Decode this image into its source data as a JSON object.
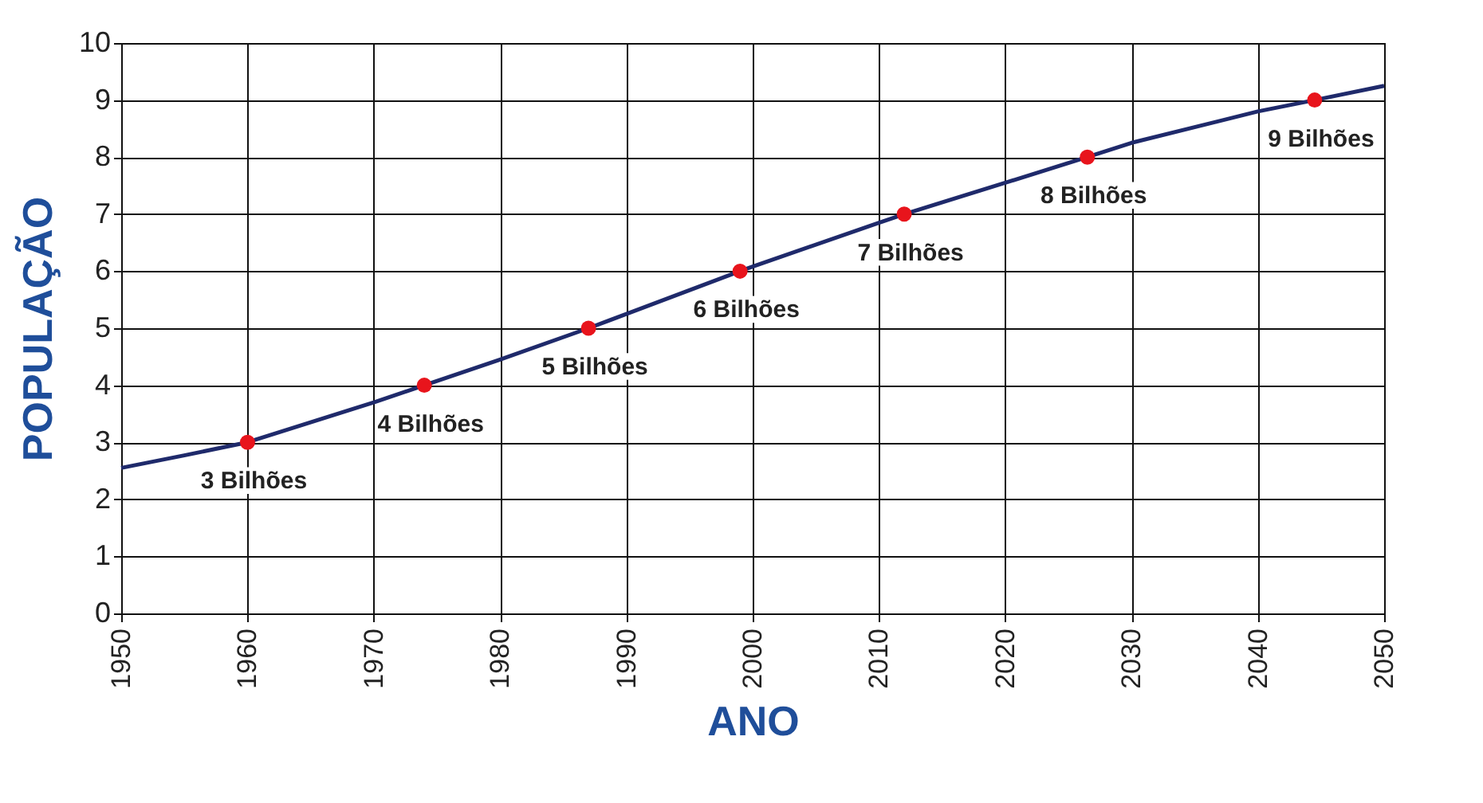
{
  "chart_data": {
    "type": "line",
    "xlabel": "ANO",
    "ylabel": "POPULAÇÃO",
    "xlim": [
      1950,
      2050
    ],
    "xticks": [
      1950,
      1960,
      1970,
      1980,
      1990,
      2000,
      2010,
      2020,
      2030,
      2040,
      2050
    ],
    "ylim": [
      0,
      10
    ],
    "yticks": [
      0,
      1,
      2,
      3,
      4,
      5,
      6,
      7,
      8,
      9,
      10
    ],
    "grid": true,
    "series": [
      {
        "type": "line",
        "color": "#1f2a6b",
        "marker": "none",
        "x": [
          1950,
          1955,
          1960,
          1970,
          1974,
          1980,
          1987,
          1990,
          1999,
          2000,
          2010,
          2012,
          2020,
          2026.5,
          2030,
          2040,
          2044.5,
          2050
        ],
        "values": [
          2.55,
          2.77,
          3.0,
          3.7,
          4.0,
          4.45,
          5.0,
          5.25,
          6.0,
          6.08,
          6.85,
          7.0,
          7.55,
          8.0,
          8.25,
          8.8,
          9.0,
          9.25
        ]
      },
      {
        "type": "scatter",
        "color": "#e8141c",
        "marker": "circle",
        "x": [
          1960,
          1974,
          1987,
          1999,
          2012,
          2026.5,
          2044.5
        ],
        "values": [
          3,
          4,
          5,
          6,
          7,
          8,
          9
        ]
      }
    ],
    "annotations": [
      {
        "text": "3 Bilhões",
        "x": 1960,
        "y": 3
      },
      {
        "text": "4 Bilhões",
        "x": 1974,
        "y": 4
      },
      {
        "text": "5 Bilhões",
        "x": 1987,
        "y": 5
      },
      {
        "text": "6 Bilhões",
        "x": 1999,
        "y": 6
      },
      {
        "text": "7 Bilhões",
        "x": 2012,
        "y": 7
      },
      {
        "text": "8 Bilhões",
        "x": 2026.5,
        "y": 8
      },
      {
        "text": "9 Bilhões",
        "x": 2044.5,
        "y": 9
      }
    ]
  }
}
